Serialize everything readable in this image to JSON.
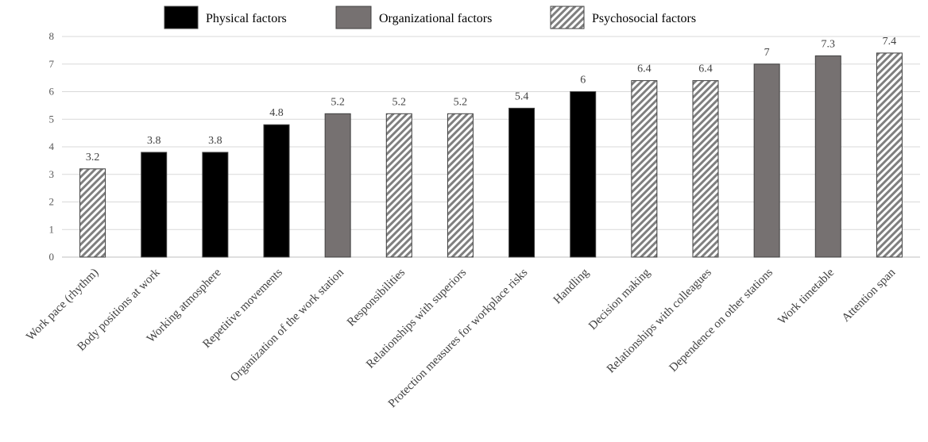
{
  "chart_data": {
    "type": "bar",
    "title": "",
    "xlabel": "",
    "ylabel": "",
    "ylim": [
      0,
      8
    ],
    "yticks": [
      0,
      1,
      2,
      3,
      4,
      5,
      6,
      7,
      8
    ],
    "grid": true,
    "legend_position": "top-center",
    "groups": [
      {
        "name": "Physical factors",
        "style": "solid",
        "color": "#000000"
      },
      {
        "name": "Organizational factors",
        "style": "solid",
        "color": "#767171"
      },
      {
        "name": "Psychosocial factors",
        "style": "hatched",
        "color": "#7f7f7f"
      }
    ],
    "categories": [
      "Work pace (rhythm)",
      "Body positions at work",
      "Working atmosphere",
      "Repetitive movements",
      "Organization  of the work station",
      "Responsibilities",
      "Relationships with superiors",
      "Protection measures for workplace risks",
      "Handling",
      "Decision making",
      "Relationships with colleagues",
      "Dependence on other stations",
      "Work timetable",
      "Attention span"
    ],
    "values": [
      3.2,
      3.8,
      3.8,
      4.8,
      5.2,
      5.2,
      5.2,
      5.4,
      6,
      6.4,
      6.4,
      7,
      7.3,
      7.4
    ],
    "value_labels": [
      "3.2",
      "3.8",
      "3.8",
      "4.8",
      "5.2",
      "5.2",
      "5.2",
      "5.4",
      "6",
      "6.4",
      "6.4",
      "7",
      "7.3",
      "7.4"
    ],
    "bar_groups": [
      2,
      0,
      0,
      0,
      1,
      2,
      2,
      0,
      0,
      2,
      2,
      1,
      1,
      2
    ]
  }
}
